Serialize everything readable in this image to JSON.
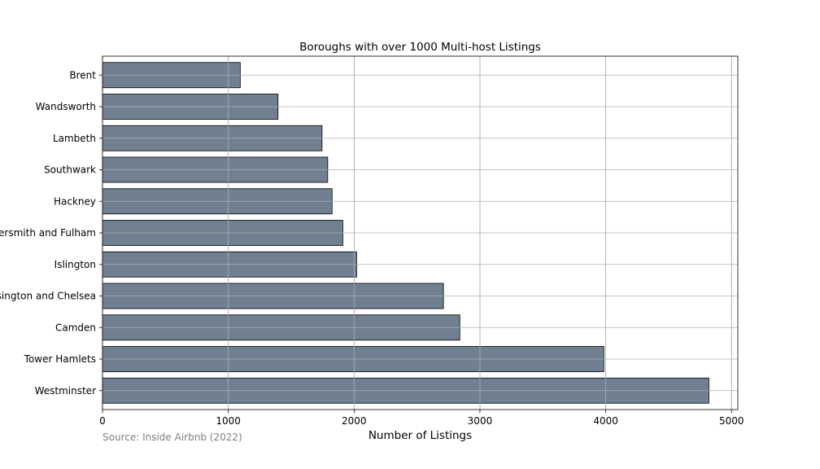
{
  "chart_data": {
    "type": "bar",
    "orientation": "horizontal",
    "title": "Boroughs with over 1000 Multi-host Listings",
    "xlabel": "Number of Listings",
    "ylabel": "",
    "source": "Source: Inside Airbnb (2022)",
    "categories": [
      "Westminster",
      "Tower Hamlets",
      "Camden",
      "Kensington and Chelsea",
      "Islington",
      "Hammersmith and Fulham",
      "Hackney",
      "Southwark",
      "Lambeth",
      "Wandsworth",
      "Brent"
    ],
    "values": [
      4820,
      3985,
      2840,
      2710,
      2020,
      1910,
      1825,
      1790,
      1745,
      1395,
      1095
    ],
    "xlim": [
      0,
      5050
    ],
    "xticks": [
      0,
      1000,
      2000,
      3000,
      4000,
      5000
    ],
    "grid": true,
    "bar_color": "#708090",
    "bar_edge_color": "#000000"
  }
}
